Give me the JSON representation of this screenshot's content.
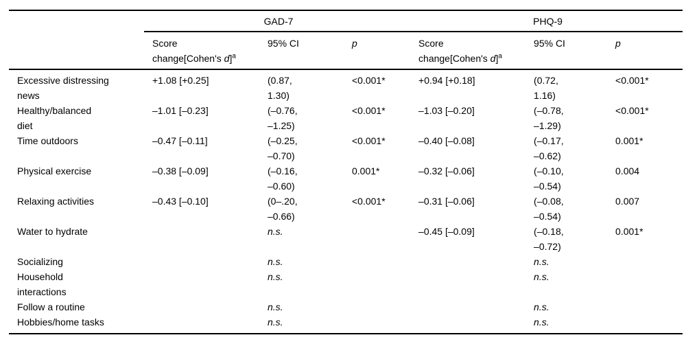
{
  "table": {
    "groups": [
      {
        "label": "GAD-7"
      },
      {
        "label": "PHQ-9"
      }
    ],
    "score_header": {
      "line1": "Score",
      "line2_prefix": "change[Cohen's ",
      "cohens_d": "d",
      "close_bracket": "]",
      "footnote_mark": "a"
    },
    "ci_header": "95% CI",
    "p_header": "p",
    "rows": [
      {
        "label": [
          "Excessive distressing",
          "news"
        ],
        "gad": {
          "score": "+1.08 [+0.25]",
          "ci": [
            "(0.87,",
            "1.30)"
          ],
          "p": "<0.001*"
        },
        "phq": {
          "score": "+0.94 [+0.18]",
          "ci": [
            "(0.72,",
            "1.16)"
          ],
          "p": "<0.001*"
        }
      },
      {
        "label": [
          "Healthy/balanced",
          "diet"
        ],
        "gad": {
          "score": "–1.01 [–0.23]",
          "ci": [
            "(–0.76,",
            "–1.25)"
          ],
          "p": "<0.001*"
        },
        "phq": {
          "score": "–1.03 [–0.20]",
          "ci": [
            "(–0.78,",
            "–1.29)"
          ],
          "p": "<0.001*"
        }
      },
      {
        "label": [
          "Time outdoors"
        ],
        "gad": {
          "score": "–0.47 [–0.11]",
          "ci": [
            "(–0.25,",
            "–0.70)"
          ],
          "p": "<0.001*"
        },
        "phq": {
          "score": "–0.40 [–0.08]",
          "ci": [
            "(–0.17,",
            "–0.62)"
          ],
          "p": "0.001*"
        }
      },
      {
        "label": [
          "Physical exercise"
        ],
        "gad": {
          "score": "–0.38 [–0.09]",
          "ci": [
            "(–0.16,",
            "–0.60)"
          ],
          "p": "0.001*"
        },
        "phq": {
          "score": "–0.32 [–0.06]",
          "ci": [
            "(–0.10,",
            "–0.54)"
          ],
          "p": "0.004"
        }
      },
      {
        "label": [
          "Relaxing activities"
        ],
        "gad": {
          "score": "–0.43 [–0.10]",
          "ci": [
            "(0–.20,",
            "–0.66)"
          ],
          "p": "<0.001*"
        },
        "phq": {
          "score": "–0.31 [–0.06]",
          "ci": [
            "(–0.08,",
            "–0.54)"
          ],
          "p": "0.007"
        }
      },
      {
        "label": [
          "Water to hydrate"
        ],
        "gad": {
          "score": "",
          "ci": [
            "n.s."
          ],
          "p": ""
        },
        "phq": {
          "score": "–0.45 [–0.09]",
          "ci": [
            "(–0.18,",
            "–0.72)"
          ],
          "p": "0.001*"
        }
      },
      {
        "label": [
          "Socializing"
        ],
        "gad": {
          "score": "",
          "ci": [
            "n.s."
          ],
          "p": ""
        },
        "phq": {
          "score": "",
          "ci": [
            "n.s."
          ],
          "p": ""
        }
      },
      {
        "label": [
          "Household",
          "interactions"
        ],
        "gad": {
          "score": "",
          "ci": [
            "n.s."
          ],
          "p": ""
        },
        "phq": {
          "score": "",
          "ci": [
            "n.s."
          ],
          "p": ""
        }
      },
      {
        "label": [
          "Follow a routine"
        ],
        "gad": {
          "score": "",
          "ci": [
            "n.s."
          ],
          "p": ""
        },
        "phq": {
          "score": "",
          "ci": [
            "n.s."
          ],
          "p": ""
        }
      },
      {
        "label": [
          "Hobbies/home tasks"
        ],
        "gad": {
          "score": "",
          "ci": [
            "n.s."
          ],
          "p": ""
        },
        "phq": {
          "score": "",
          "ci": [
            "n.s."
          ],
          "p": ""
        }
      }
    ]
  }
}
